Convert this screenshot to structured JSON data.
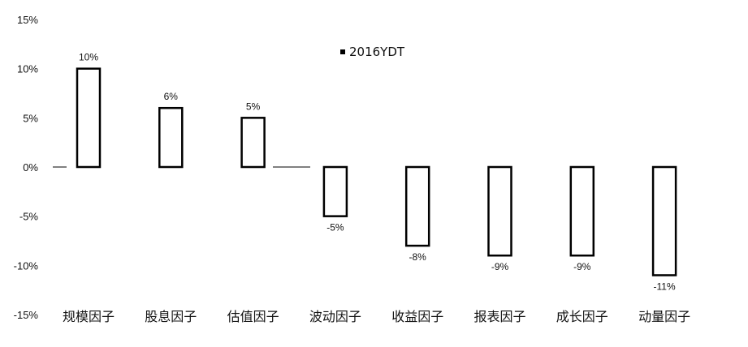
{
  "chart_data": {
    "type": "bar",
    "categories": [
      "规模因子",
      "股息因子",
      "估值因子",
      "波动因子",
      "收益因子",
      "报表因子",
      "成长因子",
      "动量因子"
    ],
    "series": [
      {
        "name": "2016YDT",
        "values": [
          10,
          6,
          5,
          -5,
          -8,
          -9,
          -9,
          -11
        ],
        "labels": [
          "10%",
          "6%",
          "5%",
          "-5%",
          "-8%",
          "-9%",
          "-9%",
          "-11%"
        ],
        "color": "#000000",
        "fill": "#ffffff"
      }
    ],
    "ylim": [
      -15,
      15
    ],
    "yticks": [
      15,
      10,
      5,
      0,
      -5,
      -10,
      -15
    ],
    "ytick_labels": [
      "15%",
      "10%",
      "5%",
      "0%",
      "-5%",
      "-10%",
      "-15%"
    ],
    "grid": false,
    "legend_position": "top-center"
  }
}
